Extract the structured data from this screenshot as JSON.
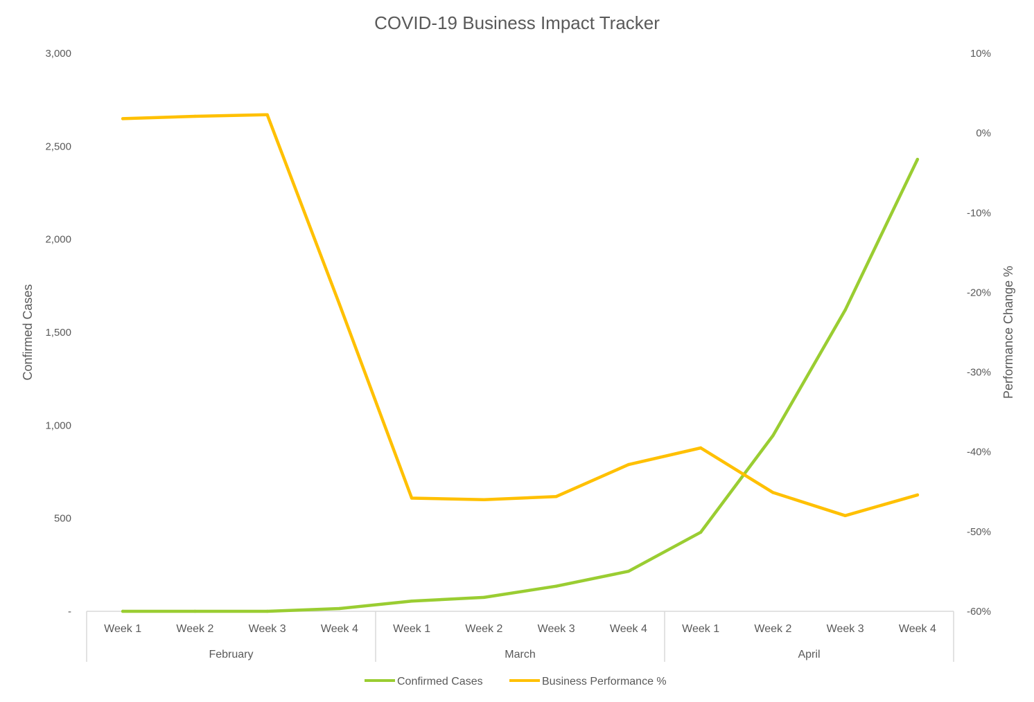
{
  "chart_data": {
    "type": "line",
    "title": "COVID-19 Business Impact Tracker",
    "categories": [
      "Week 1",
      "Week 2",
      "Week 3",
      "Week 4",
      "Week 1",
      "Week 2",
      "Week 3",
      "Week 4",
      "Week 1",
      "Week 2",
      "Week 3",
      "Week 4"
    ],
    "groups": [
      {
        "label": "February",
        "span": 4
      },
      {
        "label": "March",
        "span": 4
      },
      {
        "label": "April",
        "span": 4
      }
    ],
    "series": [
      {
        "name": "Confirmed Cases",
        "axis": "left",
        "color": "#9ACD32",
        "values": [
          0,
          0,
          0,
          15,
          55,
          75,
          135,
          215,
          425,
          945,
          1620,
          2430
        ]
      },
      {
        "name": "Business Performance %",
        "axis": "right",
        "color": "#FFC000",
        "values": [
          1.8,
          2.1,
          2.3,
          -21.5,
          -45.8,
          -46.0,
          -45.6,
          -41.6,
          -39.5,
          -45.1,
          -48.0,
          -45.4
        ]
      }
    ],
    "y_left": {
      "label": "Confirmed Cases",
      "min": 0,
      "max": 3000,
      "ticks": [
        "-",
        "500",
        "1,000",
        "1,500",
        "2,000",
        "2,500",
        "3,000"
      ]
    },
    "y_right": {
      "label": "Performance Change %",
      "min": -60,
      "max": 10,
      "ticks": [
        "-60%",
        "-50%",
        "-40%",
        "-30%",
        "-20%",
        "-10%",
        "0%",
        "10%"
      ]
    },
    "legend": "bottom",
    "grid": false
  }
}
